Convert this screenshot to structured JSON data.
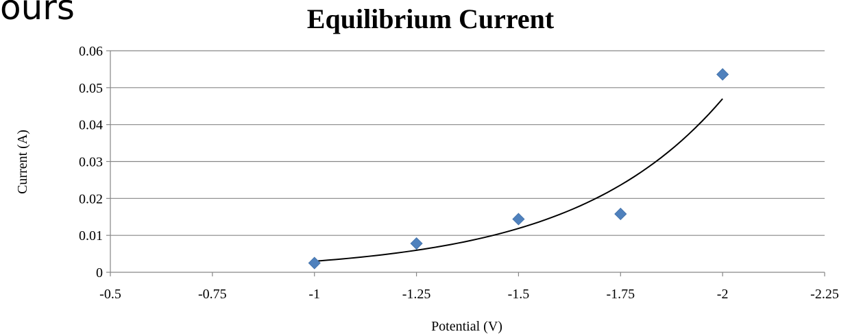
{
  "slide": {
    "fragment_text": "ours"
  },
  "chart_data": {
    "type": "scatter",
    "title": "Equilibrium Current",
    "xlabel": "Potential (V)",
    "ylabel": "Current (A)",
    "xlim": [
      -0.5,
      -2.25
    ],
    "ylim": [
      0,
      0.06
    ],
    "x_ticks": [
      "-0.5",
      "-0.75",
      "-1",
      "-1.25",
      "-1.5",
      "-1.75",
      "-2",
      "-2.25"
    ],
    "y_ticks": [
      "0",
      "0.01",
      "0.02",
      "0.03",
      "0.04",
      "0.05",
      "0.06"
    ],
    "grid": "horizontal",
    "x_axis_reversed": true,
    "series": [
      {
        "marker": "diamond",
        "color": "#4f81bd",
        "x": [
          -1,
          -1.25,
          -1.5,
          -1.75,
          -2
        ],
        "y": [
          0.0025,
          0.0078,
          0.0144,
          0.0158,
          0.0536
        ]
      }
    ],
    "trendline": {
      "type": "exponential",
      "color": "#000000",
      "x_range": [
        -1,
        -2
      ],
      "y_at_start": 0.003,
      "y_at_end": 0.047
    }
  }
}
